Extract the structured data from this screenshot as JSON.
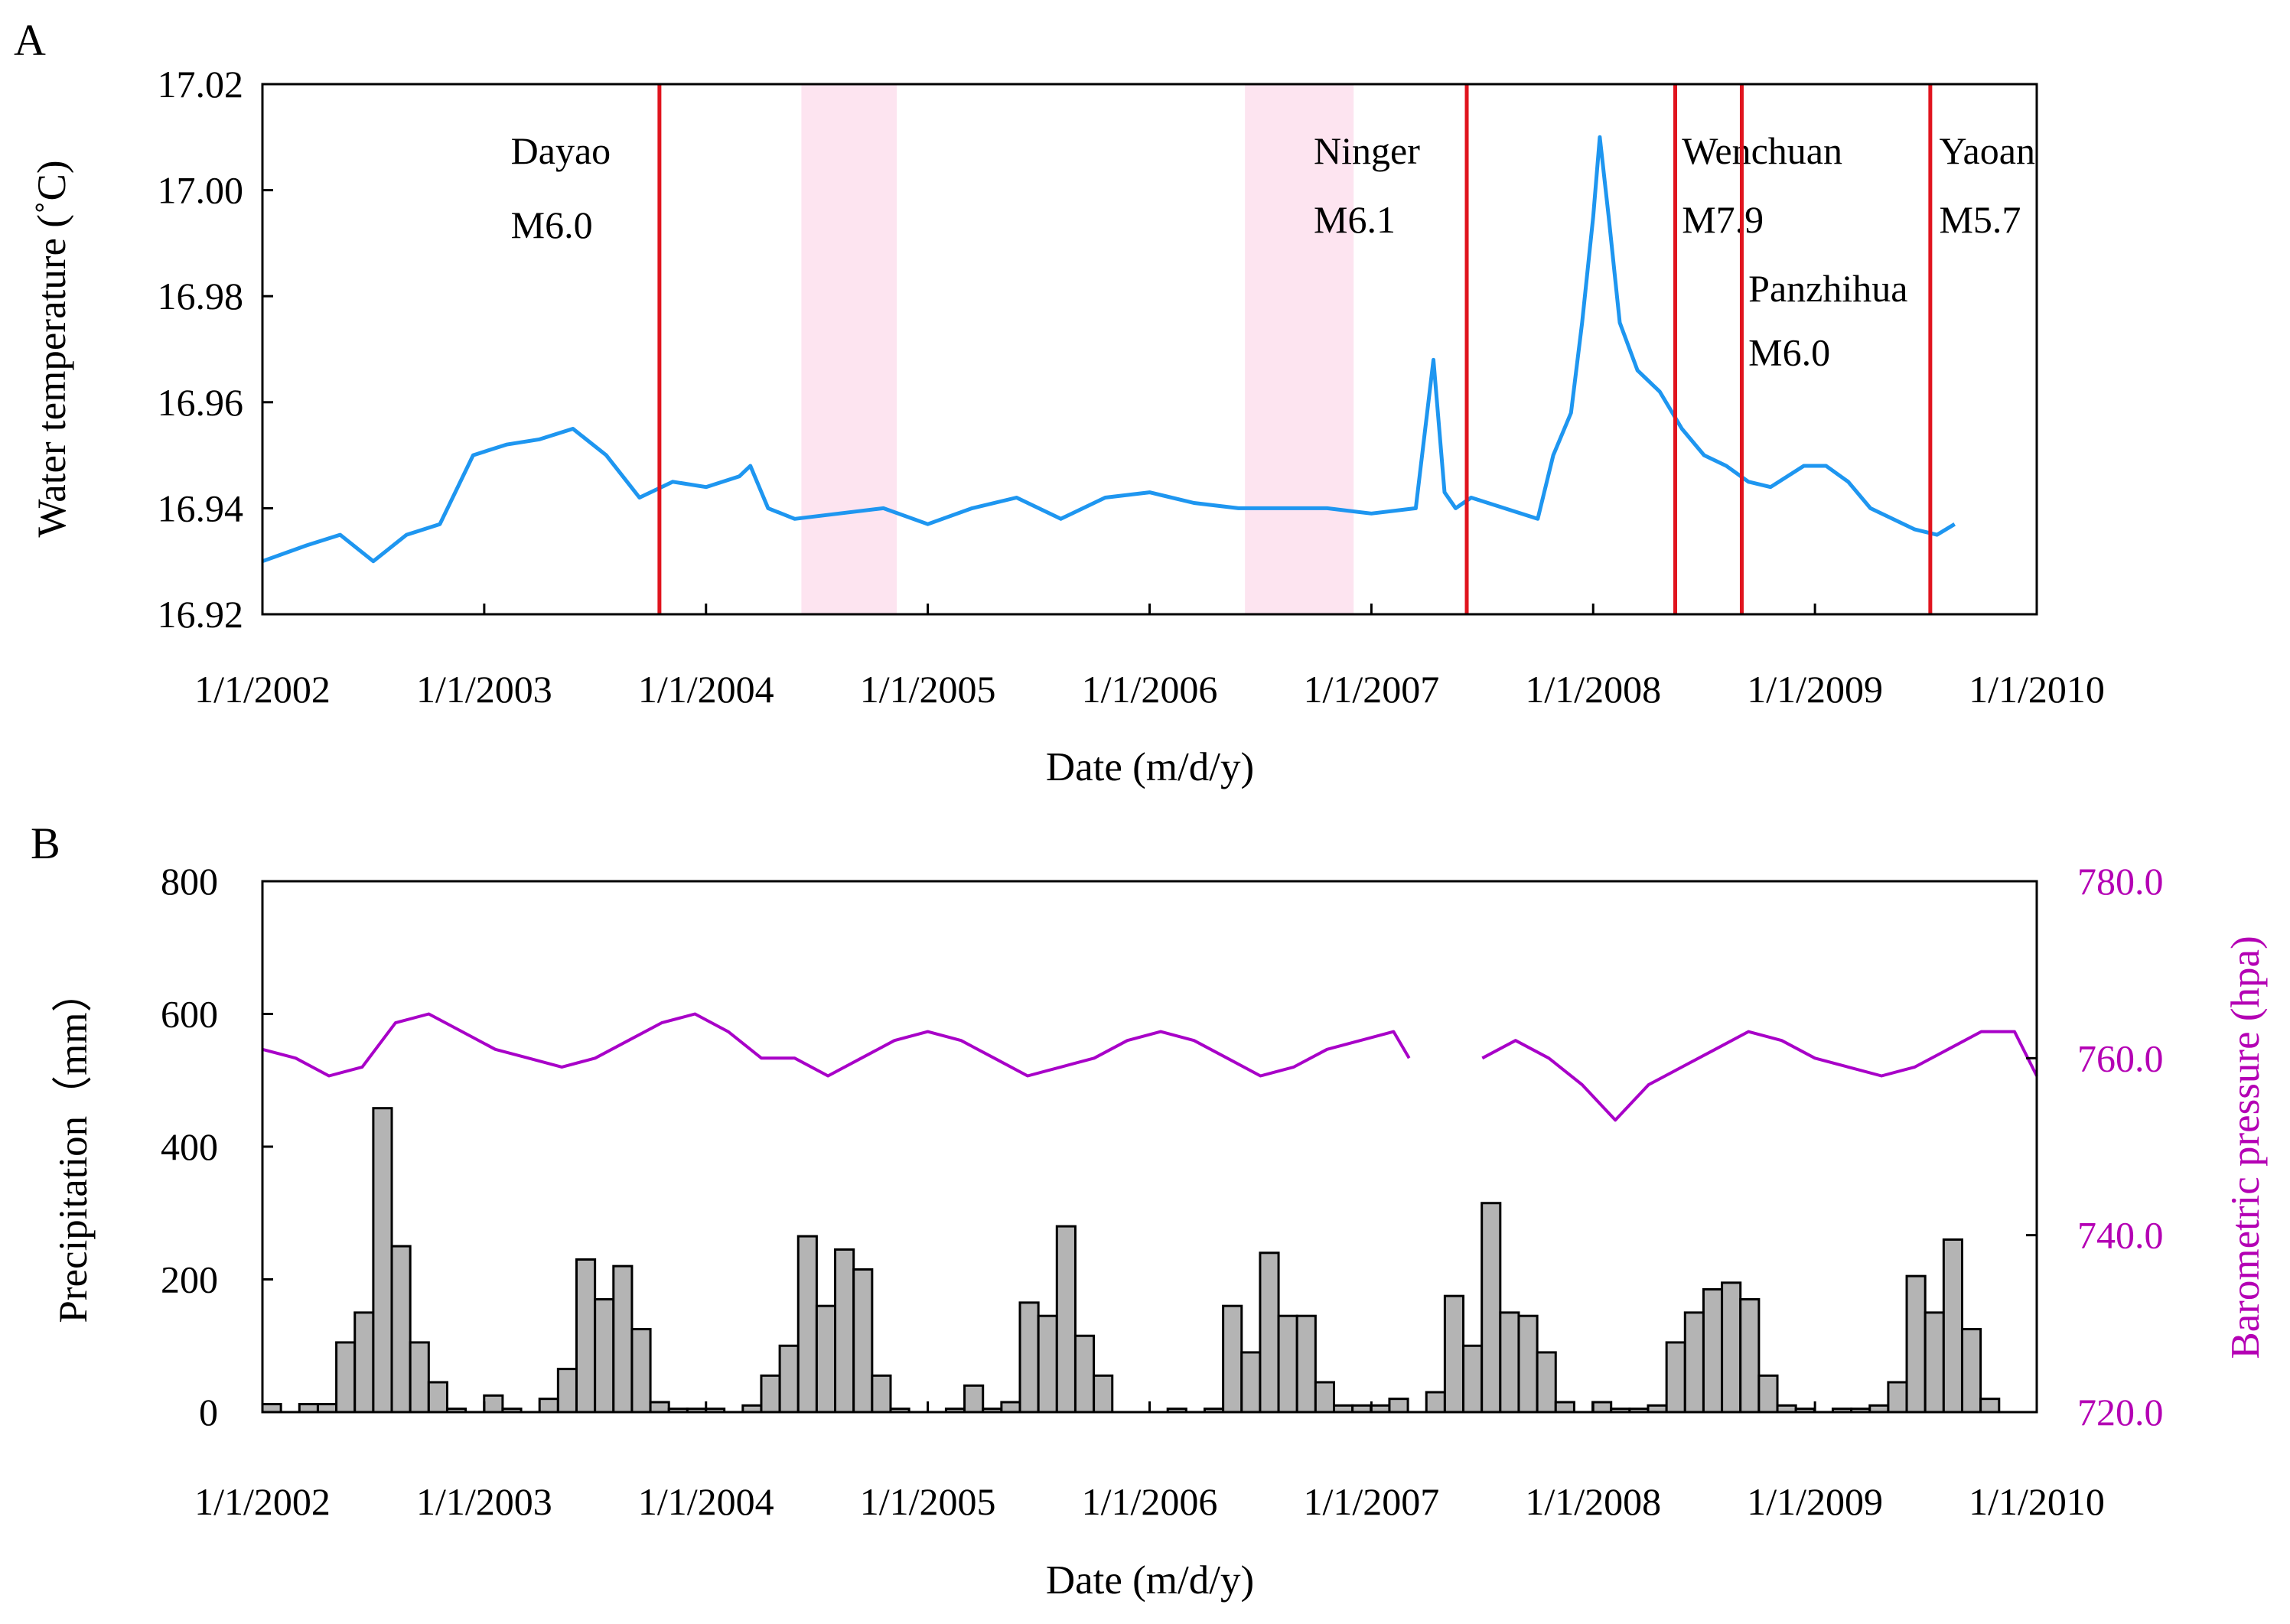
{
  "panels": {
    "a": {
      "label": "A",
      "xlabel": "Date (m/d/y)",
      "ylabel": "Water temperature (˚C)"
    },
    "b": {
      "label": "B",
      "xlabel": "Date (m/d/y)",
      "ylabel": "Precipitation（mm）",
      "y2label": "Barometric pressure (hpa)"
    }
  },
  "colors": {
    "temperature": "#1e96f0",
    "pressure": "#a800c8",
    "bars": "#b4b4b4",
    "quake_lines": "#e0141e",
    "shade": "#fde4f0"
  },
  "chart_data": [
    {
      "type": "line",
      "title": "",
      "xlabel": "Date (m/d/y)",
      "ylabel": "Water temperature (˚C)",
      "x_ticks": [
        "1/1/2002",
        "1/1/2003",
        "1/1/2004",
        "1/1/2005",
        "1/1/2006",
        "1/1/2007",
        "1/1/2008",
        "1/1/2009",
        "1/1/2010"
      ],
      "xlim": [
        2002.0,
        2010.0
      ],
      "ylim": [
        16.92,
        17.02
      ],
      "y_ticks": [
        "16.92",
        "16.94",
        "16.96",
        "16.98",
        "17.00",
        "17.02"
      ],
      "series": [
        {
          "name": "Water temperature",
          "x": [
            2002.0,
            2002.2,
            2002.35,
            2002.5,
            2002.65,
            2002.8,
            2002.95,
            2003.1,
            2003.25,
            2003.4,
            2003.55,
            2003.7,
            2003.85,
            2004.0,
            2004.15,
            2004.2,
            2004.28,
            2004.4,
            2004.6,
            2004.8,
            2005.0,
            2005.2,
            2005.4,
            2005.6,
            2005.8,
            2006.0,
            2006.2,
            2006.4,
            2006.6,
            2006.8,
            2007.0,
            2007.2,
            2007.28,
            2007.33,
            2007.38,
            2007.45,
            2007.6,
            2007.75,
            2007.82,
            2007.9,
            2007.95,
            2008.0,
            2008.03,
            2008.07,
            2008.12,
            2008.2,
            2008.3,
            2008.4,
            2008.5,
            2008.6,
            2008.7,
            2008.8,
            2008.95,
            2009.05,
            2009.15,
            2009.25,
            2009.35,
            2009.45,
            2009.55,
            2009.63
          ],
          "values": [
            16.93,
            16.933,
            16.935,
            16.93,
            16.935,
            16.937,
            16.95,
            16.952,
            16.953,
            16.955,
            16.95,
            16.942,
            16.945,
            16.944,
            16.946,
            16.948,
            16.94,
            16.938,
            16.939,
            16.94,
            16.937,
            16.94,
            16.942,
            16.938,
            16.942,
            16.943,
            16.941,
            16.94,
            16.94,
            16.94,
            16.939,
            16.94,
            16.968,
            16.943,
            16.94,
            16.942,
            16.94,
            16.938,
            16.95,
            16.958,
            16.975,
            16.995,
            17.01,
            16.995,
            16.975,
            16.966,
            16.962,
            16.955,
            16.95,
            16.948,
            16.945,
            16.944,
            16.948,
            16.948,
            16.945,
            16.94,
            16.938,
            16.936,
            16.935,
            16.937
          ]
        }
      ],
      "shaded_periods": [
        {
          "start": 2004.43,
          "end": 2004.86
        },
        {
          "start": 2006.43,
          "end": 2006.92
        }
      ],
      "events": [
        {
          "x": 2003.79,
          "name": "Dayao",
          "magnitude": "M6.0",
          "label_x": 2003.12,
          "label_y": 17.005,
          "mag_y": 16.991
        },
        {
          "x": 2007.43,
          "name": "Ninger",
          "magnitude": "M6.1",
          "label_x": 2006.74,
          "label_y": 17.005,
          "mag_y": 16.992
        },
        {
          "x": 2008.37,
          "name": "Wenchuan",
          "magnitude": "M7.9",
          "label_x": 2008.4,
          "label_y": 17.005,
          "mag_y": 16.992
        },
        {
          "x": 2008.67,
          "name": "Panzhihua",
          "magnitude": "M6.0",
          "label_x": 2008.7,
          "label_y": 16.979,
          "mag_y": 16.967
        },
        {
          "x": 2009.52,
          "name": "Yaoan",
          "magnitude": "M5.7",
          "label_x": 2009.56,
          "label_y": 17.005,
          "mag_y": 16.992
        }
      ],
      "grid": false
    },
    {
      "type": "bar",
      "title": "",
      "xlabel": "Date (m/d/y)",
      "ylabel": "Precipitation（mm）",
      "y2label": "Barometric pressure (hpa)",
      "x_ticks": [
        "1/1/2002",
        "1/1/2003",
        "1/1/2004",
        "1/1/2005",
        "1/1/2006",
        "1/1/2007",
        "1/1/2008",
        "1/1/2009",
        "1/1/2010"
      ],
      "xlim": [
        2002.0,
        2010.0
      ],
      "ylim": [
        0,
        800
      ],
      "y_ticks": [
        "0",
        "200",
        "400",
        "600",
        "800"
      ],
      "y2lim": [
        720.0,
        780.0
      ],
      "y2_ticks": [
        "720.0",
        "740.0",
        "760.0",
        "780.0"
      ],
      "bar_width_years": 0.0833,
      "precipitation": {
        "name": "Monthly precipitation (mm)",
        "start": 2002.0,
        "values": [
          12,
          0,
          12,
          12,
          105,
          150,
          458,
          250,
          105,
          45,
          5,
          0,
          25,
          5,
          0,
          20,
          65,
          230,
          170,
          220,
          125,
          15,
          5,
          5,
          5,
          0,
          10,
          55,
          100,
          265,
          160,
          245,
          215,
          55,
          5,
          0,
          0,
          5,
          40,
          5,
          15,
          165,
          145,
          280,
          115,
          55,
          0,
          0,
          0,
          5,
          0,
          5,
          160,
          90,
          240,
          145,
          145,
          45,
          10,
          10,
          10,
          20,
          0,
          30,
          175,
          100,
          315,
          150,
          145,
          90,
          15,
          0,
          15,
          5,
          5,
          10,
          105,
          150,
          185,
          195,
          170,
          55,
          10,
          5,
          0,
          5,
          5,
          10,
          45,
          205,
          150,
          260,
          125,
          20,
          0,
          0
        ]
      },
      "pressure": {
        "name": "Barometric pressure (hpa)",
        "x": [
          2002.0,
          2002.15,
          2002.3,
          2002.45,
          2002.6,
          2002.75,
          2002.9,
          2003.05,
          2003.2,
          2003.35,
          2003.5,
          2003.65,
          2003.8,
          2003.95,
          2004.1,
          2004.25,
          2004.4,
          2004.55,
          2004.7,
          2004.85,
          2005.0,
          2005.15,
          2005.3,
          2005.45,
          2005.6,
          2005.75,
          2005.9,
          2006.05,
          2006.2,
          2006.35,
          2006.5,
          2006.65,
          2006.8,
          2006.95,
          2007.1,
          2007.17,
          null,
          2007.5,
          2007.65,
          2007.8,
          2007.95,
          2008.1,
          2008.25,
          2008.4,
          2008.55,
          2008.7,
          2008.85,
          2009.0,
          2009.15,
          2009.3,
          2009.45,
          2009.6,
          2009.75,
          2009.9,
          2010.0
        ],
        "values": [
          761,
          760,
          758,
          759,
          764,
          765,
          763,
          761,
          760,
          759,
          760,
          762,
          764,
          765,
          763,
          760,
          760,
          758,
          760,
          762,
          763,
          762,
          760,
          758,
          759,
          760,
          762,
          763,
          762,
          760,
          758,
          759,
          761,
          762,
          763,
          760,
          null,
          760,
          762,
          760,
          757,
          753,
          757,
          759,
          761,
          763,
          762,
          760,
          759,
          758,
          759,
          761,
          763,
          763,
          758
        ]
      },
      "grid": false
    }
  ]
}
